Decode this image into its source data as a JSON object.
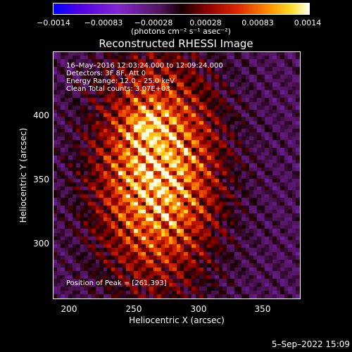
{
  "colorbar": {
    "tick_labels": [
      "−0.0014",
      "−0.00083",
      "−0.00028",
      "0.00028",
      "0.00083",
      "0.0014"
    ],
    "unit_label": "(photons cm⁻² s⁻¹ asec⁻²)"
  },
  "chart_data": {
    "type": "heatmap",
    "title": "Reconstructed RHESSI Image",
    "xlabel": "Heliocentric X (arcsec)",
    "ylabel": "Heliocentric Y (arcsec)",
    "xlim": [
      187,
      379
    ],
    "ylim": [
      257,
      449
    ],
    "x_ticks": [
      200,
      250,
      300,
      350
    ],
    "y_ticks": [
      300,
      350,
      400
    ],
    "value_range": [
      -0.0014,
      0.0014
    ],
    "peak_position": [
      261,
      393
    ],
    "annotations": [
      "16–May–2016 12:03:24.000 to 12:09:24.000",
      "Detectors: 3F 8F, Att 0",
      "Energy Range: 12.0 – 25.0 keV",
      "Clean    Total counts: 3.07E+03",
      "Position of Peak = [261,393]"
    ]
  },
  "footer": {
    "date": "5–Sep–2022 15:09"
  }
}
